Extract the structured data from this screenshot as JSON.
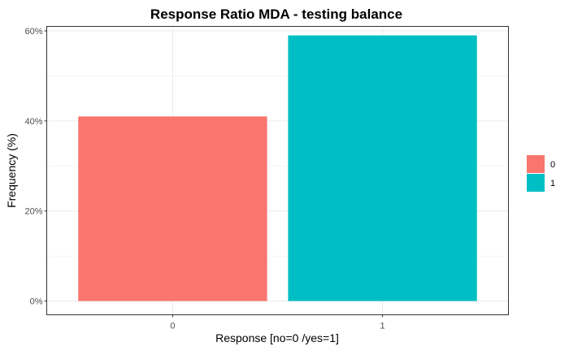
{
  "chart_data": {
    "type": "bar",
    "title": "Response Ratio MDA - testing balance",
    "xlabel": "Response [no=0 /yes=1]",
    "ylabel": "Frequency (%)",
    "categories": [
      "0",
      "1"
    ],
    "values": [
      41,
      59
    ],
    "colors": [
      "#F8766D",
      "#00BFC4"
    ],
    "ylim": [
      0,
      61
    ],
    "yticks": [
      0,
      20,
      40,
      60
    ],
    "ytick_labels": [
      "0%",
      "20%",
      "40%",
      "60%"
    ],
    "grid": true,
    "legend": {
      "position": "right",
      "entries": [
        {
          "label": "0",
          "color": "#F8766D"
        },
        {
          "label": "1",
          "color": "#00BFC4"
        }
      ]
    }
  }
}
